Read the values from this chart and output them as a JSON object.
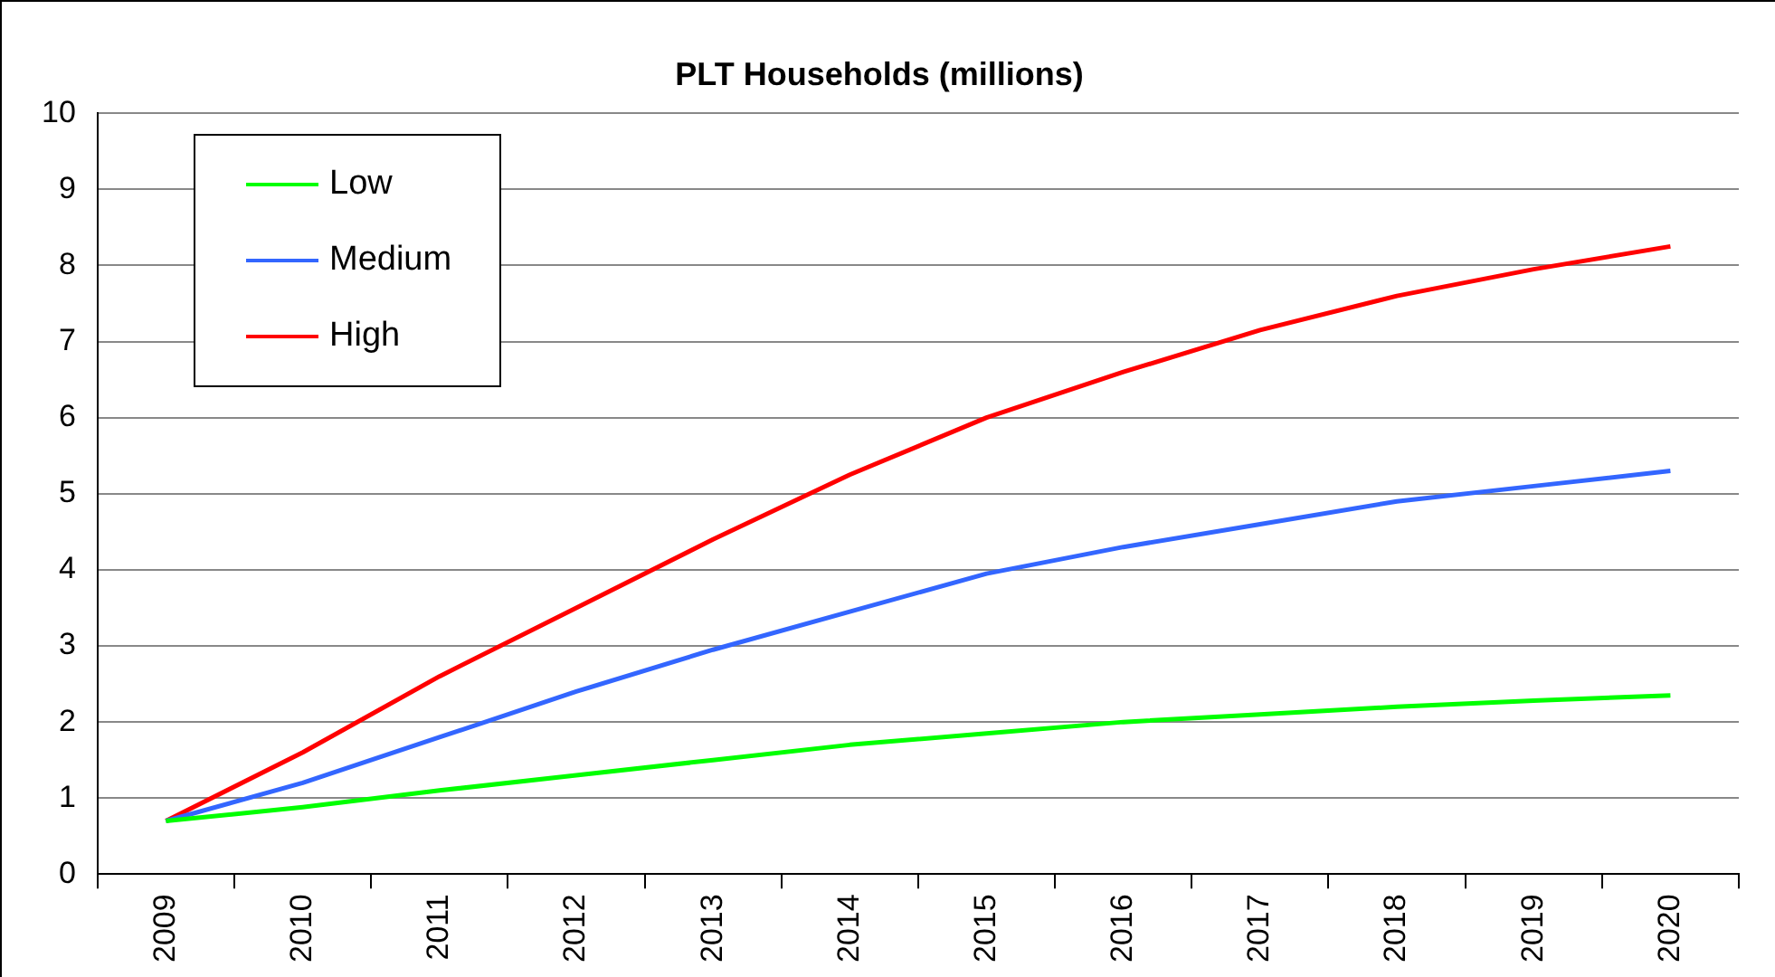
{
  "chart_data": {
    "type": "line",
    "title": "PLT Households (millions)",
    "categories": [
      "2009",
      "2010",
      "2011",
      "2012",
      "2013",
      "2014",
      "2015",
      "2016",
      "2017",
      "2018",
      "2019",
      "2020"
    ],
    "series": [
      {
        "name": "Low",
        "color": "#00ff00",
        "values": [
          0.7,
          0.88,
          1.1,
          1.3,
          1.5,
          1.7,
          1.85,
          2.0,
          2.1,
          2.2,
          2.28,
          2.35
        ]
      },
      {
        "name": "Medium",
        "color": "#3366ff",
        "values": [
          0.7,
          1.2,
          1.8,
          2.4,
          2.95,
          3.45,
          3.95,
          4.3,
          4.6,
          4.9,
          5.1,
          5.3
        ]
      },
      {
        "name": "High",
        "color": "#ff0000",
        "values": [
          0.7,
          1.6,
          2.6,
          3.5,
          4.4,
          5.25,
          6.0,
          6.6,
          7.15,
          7.6,
          7.95,
          8.25
        ]
      }
    ],
    "ylim": [
      0,
      10
    ],
    "yticks": [
      0,
      1,
      2,
      3,
      4,
      5,
      6,
      7,
      8,
      9,
      10
    ],
    "grid": "y",
    "legend": "top left",
    "marker": "none",
    "line_style": "solid"
  }
}
